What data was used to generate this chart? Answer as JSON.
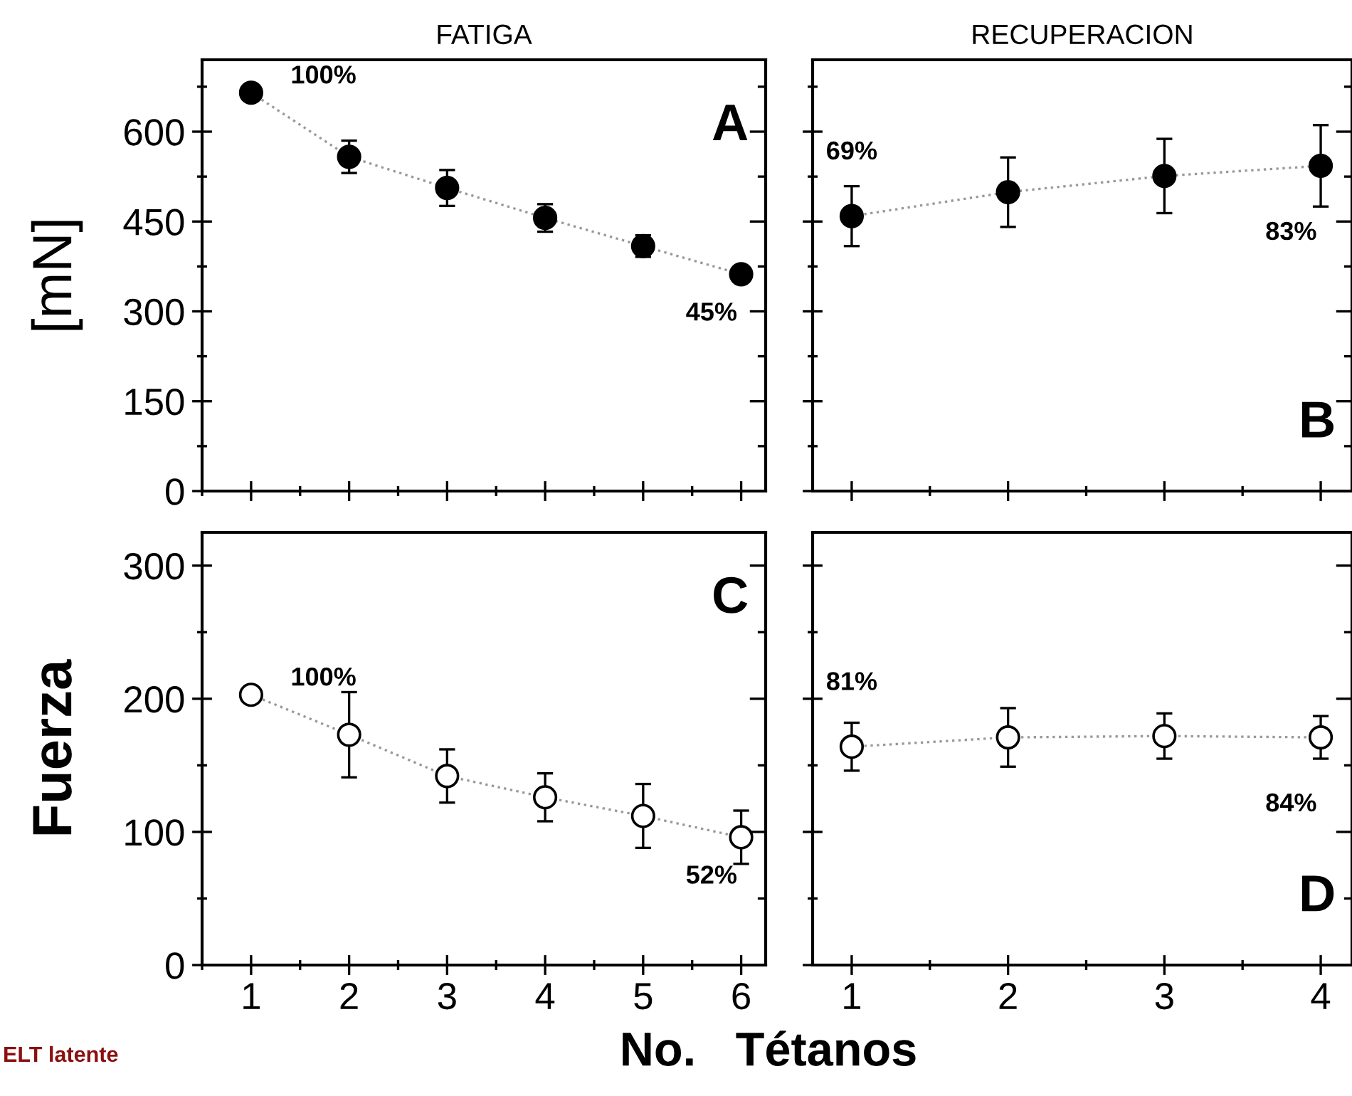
{
  "chart_data": [
    {
      "type": "line",
      "title": "FATIGA",
      "ylabel": "[mN]",
      "x": [
        1,
        2,
        3,
        4,
        5,
        6
      ],
      "xlim": [
        0.5,
        6.25
      ],
      "xticks": [
        1,
        2,
        3,
        4,
        5,
        6
      ],
      "ylim": [
        0,
        720
      ],
      "yticks": [
        0,
        150,
        300,
        450,
        600
      ],
      "tick_labels": "y",
      "marker": "circle",
      "line_style": "dotted",
      "series": [
        {
          "color": "#000000",
          "values": [
            665,
            558,
            506,
            456,
            409,
            362
          ],
          "errors": [
            12,
            27,
            30,
            23,
            18,
            10
          ]
        }
      ],
      "annotations": [
        "A",
        {
          "text": "100%",
          "x": 1,
          "y": 665
        },
        {
          "text": "45%",
          "x": 6,
          "y": 362
        }
      ]
    },
    {
      "type": "line",
      "title": "RECUPERACION",
      "x": [
        1,
        2,
        3,
        4
      ],
      "xlim": [
        0.75,
        4.2
      ],
      "xticks": [
        1,
        2,
        3,
        4
      ],
      "ylim": [
        0,
        720
      ],
      "yticks": [
        {
          "value": 0,
          "label": null
        },
        {
          "value": 150,
          "label": null
        },
        {
          "value": 300,
          "label": null
        },
        {
          "value": 450,
          "label": null
        },
        {
          "value": 600,
          "label": null
        }
      ],
      "tick_labels": false,
      "marker": "circle",
      "line_style": "dotted",
      "series": [
        {
          "color": "#000000",
          "values": [
            459,
            499,
            526,
            543
          ],
          "errors": [
            50,
            58,
            62,
            68
          ]
        }
      ],
      "annotations": [
        "B",
        {
          "text": "69%",
          "x": 1,
          "y": 459
        },
        {
          "text": "83%",
          "x": 4,
          "y": 543
        }
      ]
    },
    {
      "type": "line",
      "ylabel": "Fuerza",
      "xlabel": "No.   Tétanos",
      "x": [
        1,
        2,
        3,
        4,
        5,
        6
      ],
      "xlim": [
        0.5,
        6.25
      ],
      "xticks": [
        1,
        2,
        3,
        4,
        5,
        6
      ],
      "ylim": [
        0,
        325
      ],
      "yticks": [
        0,
        100,
        200,
        300
      ],
      "marker": "circle",
      "line_style": "dotted",
      "series": [
        {
          "color": "#ffffff",
          "values": [
            203,
            173,
            142,
            126,
            112,
            96
          ],
          "errors": [
            5,
            32,
            20,
            18,
            24,
            20
          ]
        }
      ],
      "annotations": [
        "C",
        {
          "text": "100%",
          "x": 1,
          "y": 203
        },
        {
          "text": "52%",
          "x": 6,
          "y": 96
        },
        "ELT latente"
      ]
    },
    {
      "type": "line",
      "x": [
        1,
        2,
        3,
        4
      ],
      "xlim": [
        0.75,
        4.2
      ],
      "xticks": [
        1,
        2,
        3,
        4
      ],
      "ylim": [
        0,
        325
      ],
      "yticks": [
        {
          "value": 0,
          "label": null
        },
        {
          "value": 100,
          "label": null
        },
        {
          "value": 200,
          "label": null
        },
        {
          "value": 300,
          "label": null
        }
      ],
      "tick_labels": "x",
      "marker": "circle",
      "line_style": "dotted",
      "series": [
        {
          "color": "#ffffff",
          "values": [
            164,
            171,
            172,
            171
          ],
          "errors": [
            18,
            22,
            17,
            16
          ]
        }
      ],
      "annotations": [
        "D",
        {
          "text": "81%",
          "x": 1,
          "y": 164
        },
        {
          "text": "84%",
          "x": 4,
          "y": 171
        }
      ]
    }
  ]
}
